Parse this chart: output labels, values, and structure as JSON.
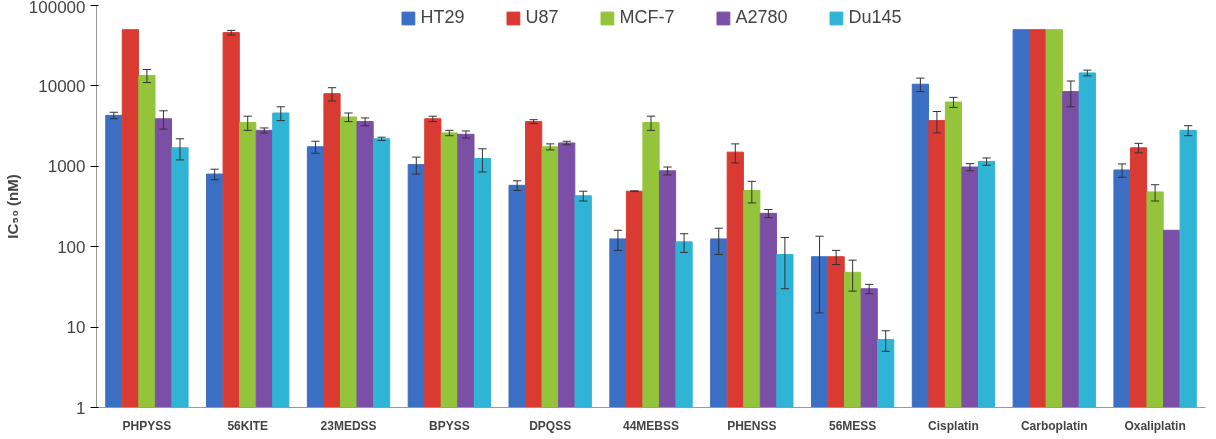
{
  "chart_data": {
    "type": "bar",
    "ylabel": "IC₅₀ (nM)",
    "log": true,
    "legend": "top",
    "grid": false,
    "categories": [
      "PHPYSS",
      "56KITE",
      "23MEDSS",
      "BPYSS",
      "DPQSS",
      "44MEBSS",
      "PHENSS",
      "56MESS",
      "Cisplatin",
      "Carboplatin",
      "Oxaliplatin"
    ],
    "ylim": [
      1,
      100000
    ],
    "yticks": [
      1,
      10,
      100,
      1000,
      10000,
      100000
    ],
    "series": [
      {
        "name": "HT29",
        "color": "#3a6fc4",
        "values": [
          4300,
          800,
          1750,
          1050,
          580,
          125,
          125,
          75,
          10500,
          50000,
          900
        ],
        "errors": [
          400,
          120,
          300,
          250,
          80,
          35,
          45,
          60,
          2000,
          null,
          170
        ]
      },
      {
        "name": "U87",
        "color": "#d93a32",
        "values": [
          50000,
          46000,
          8000,
          3900,
          3600,
          490,
          1500,
          75,
          3700,
          50000,
          1700
        ],
        "errors": [
          null,
          3000,
          1500,
          300,
          200,
          5,
          400,
          15,
          1100,
          null,
          230
        ]
      },
      {
        "name": "MCF-7",
        "color": "#94c43c",
        "values": [
          13500,
          3500,
          4100,
          2600,
          1750,
          3500,
          500,
          48,
          6300,
          50000,
          480
        ],
        "errors": [
          2500,
          700,
          500,
          200,
          150,
          700,
          150,
          20,
          900,
          null,
          110
        ]
      },
      {
        "name": "A2780",
        "color": "#7b4fa6",
        "values": [
          3900,
          2800,
          3600,
          2500,
          1950,
          880,
          260,
          30,
          980,
          8500,
          160
        ],
        "errors": [
          1000,
          200,
          400,
          250,
          100,
          100,
          30,
          4,
          100,
          3000,
          null
        ]
      },
      {
        "name": "Du145",
        "color": "#30b4d6",
        "values": [
          1700,
          4600,
          2200,
          1250,
          430,
          115,
          80,
          7,
          1150,
          14500,
          2800
        ],
        "errors": [
          500,
          900,
          100,
          400,
          60,
          30,
          50,
          2,
          120,
          1200,
          400
        ]
      }
    ]
  }
}
